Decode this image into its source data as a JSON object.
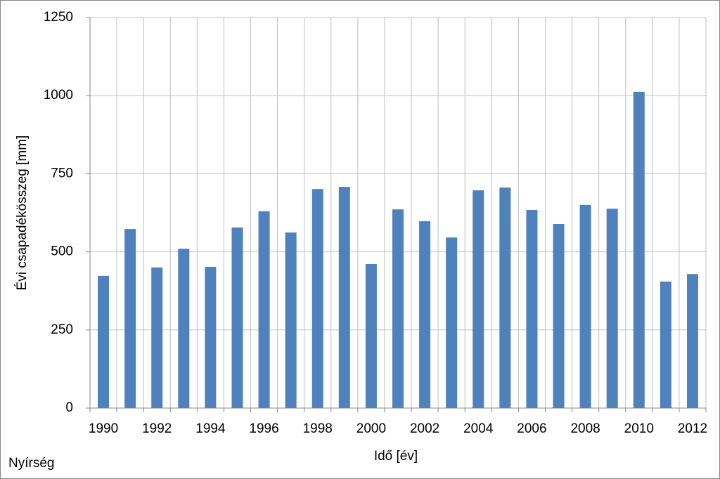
{
  "chart_data": {
    "type": "bar",
    "categories": [
      "1990",
      null,
      "1992",
      null,
      "1994",
      null,
      "1996",
      null,
      "1998",
      null,
      "2000",
      null,
      "2002",
      null,
      "2004",
      null,
      "2006",
      null,
      "2008",
      null,
      "2010",
      null,
      "2012"
    ],
    "values": [
      423,
      573,
      450,
      510,
      452,
      578,
      630,
      562,
      701,
      708,
      461,
      636,
      598,
      546,
      697,
      706,
      634,
      589,
      650,
      638,
      1012,
      405,
      429
    ],
    "color": "#4f81bd",
    "ylim": [
      0,
      1250
    ],
    "yticks": [
      0,
      250,
      500,
      750,
      1000,
      1250
    ],
    "grid": true,
    "x_label": "Idő [év]",
    "y_label": "Évi csapadékösszeg [mm]",
    "annotation": "Nyírség"
  }
}
